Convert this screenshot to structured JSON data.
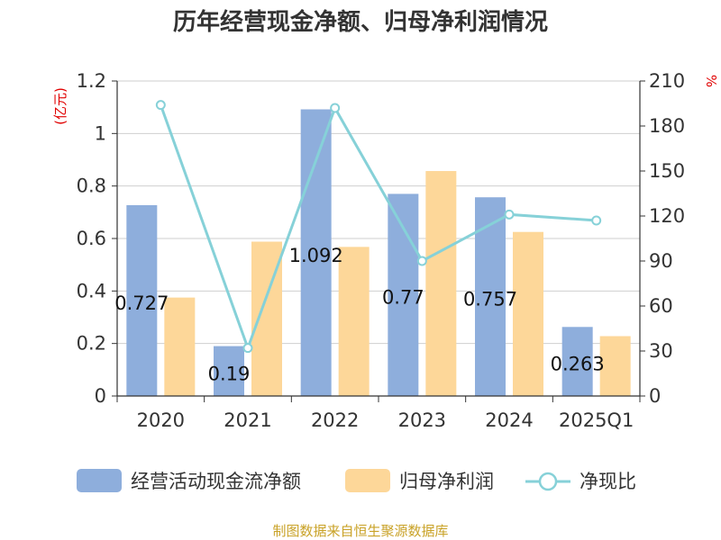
{
  "chart_data": {
    "type": "bar",
    "title": "历年经营现金净额、归母净利润情况",
    "categories": [
      "2020",
      "2021",
      "2022",
      "2023",
      "2024",
      "2025Q1"
    ],
    "series": [
      {
        "name": "经营活动现金流净额",
        "kind": "bar",
        "axis": "left",
        "color": "#8eaedc",
        "values": [
          0.727,
          0.19,
          1.092,
          0.77,
          0.757,
          0.263
        ],
        "labels": [
          "0.727",
          "0.19",
          "1.092",
          "0.77",
          "0.757",
          "0.263"
        ]
      },
      {
        "name": "归母净利润",
        "kind": "bar",
        "axis": "left",
        "color": "#fdd799",
        "values": [
          0.375,
          null,
          0.568,
          0.857,
          0.625,
          0.228
        ]
      },
      {
        "name": "净现比",
        "kind": "line",
        "axis": "right",
        "color": "#86d1d8",
        "values": [
          194,
          32,
          192,
          90,
          121,
          117
        ]
      }
    ],
    "bar2_values_note_2021": 0.588,
    "y_left": {
      "unit": "(亿元)",
      "min": 0,
      "max": 1.2,
      "ticks": [
        "0",
        "0.2",
        "0.4",
        "0.6",
        "0.8",
        "1",
        "1.2"
      ]
    },
    "y_right": {
      "unit": "%",
      "min": 0,
      "max": 210,
      "ticks": [
        "0",
        "30",
        "60",
        "90",
        "120",
        "150",
        "180",
        "210"
      ]
    },
    "grid": true,
    "legend": "bottom"
  },
  "footer": {
    "source": "制图数据来自恒生聚源数据库"
  }
}
